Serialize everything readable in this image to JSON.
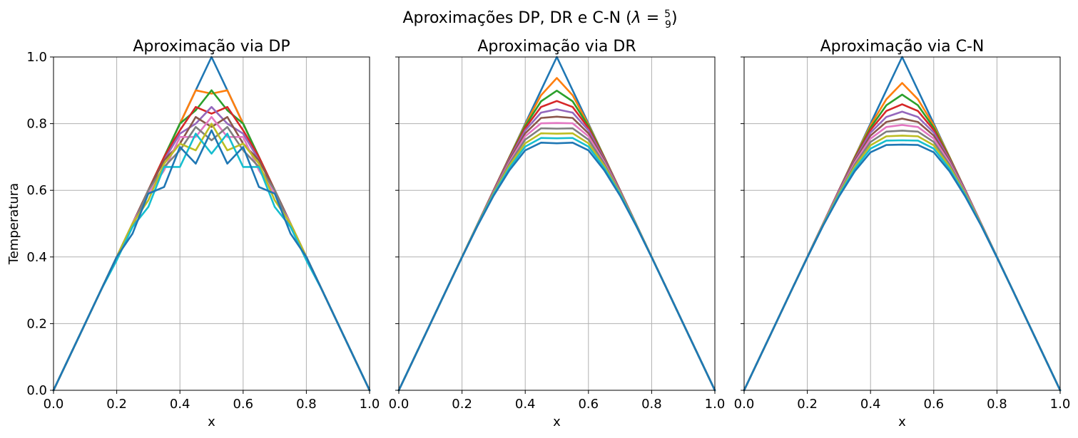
{
  "figure": {
    "suptitle_prefix": "Aproximações DP, DR e C-N (",
    "suptitle_lambda": "λ",
    "suptitle_eq": " = ",
    "suptitle_frac_num": "5",
    "suptitle_frac_den": "9",
    "suptitle_suffix": ")"
  },
  "palette": [
    "#1f77b4",
    "#ff7f0e",
    "#2ca02c",
    "#d62728",
    "#9467bd",
    "#8c564b",
    "#e377c2",
    "#7f7f7f",
    "#bcbd22",
    "#17becf",
    "#1f77b4"
  ],
  "chart_data": [
    {
      "type": "line",
      "title": "Aproximação via DP",
      "xlabel": "x",
      "ylabel": "Temperatura",
      "xlim": [
        0,
        1
      ],
      "ylim": [
        0,
        1
      ],
      "xticks": [
        "0.0",
        "0.2",
        "0.4",
        "0.6",
        "0.8",
        "1.0"
      ],
      "yticks": [
        "0.0",
        "0.2",
        "0.4",
        "0.6",
        "0.8",
        "1.0"
      ],
      "grid": true,
      "x": [
        0,
        0.05,
        0.1,
        0.15,
        0.2,
        0.25,
        0.3,
        0.35,
        0.4,
        0.45,
        0.5,
        0.55,
        0.6,
        0.65,
        0.7,
        0.75,
        0.8,
        0.85,
        0.9,
        0.95,
        1.0
      ],
      "series": [
        {
          "values": [
            0,
            0.1,
            0.2,
            0.3,
            0.4,
            0.5,
            0.6,
            0.7,
            0.8,
            0.9,
            1.0,
            0.9,
            0.8,
            0.7,
            0.6,
            0.5,
            0.4,
            0.3,
            0.2,
            0.1,
            0
          ]
        },
        {
          "values": [
            0,
            0.1,
            0.2,
            0.3,
            0.4,
            0.5,
            0.6,
            0.7,
            0.8,
            0.9,
            0.89,
            0.9,
            0.8,
            0.7,
            0.6,
            0.5,
            0.4,
            0.3,
            0.2,
            0.1,
            0
          ]
        },
        {
          "values": [
            0,
            0.1,
            0.2,
            0.3,
            0.4,
            0.5,
            0.6,
            0.7,
            0.8,
            0.84,
            0.9,
            0.84,
            0.8,
            0.7,
            0.6,
            0.5,
            0.4,
            0.3,
            0.2,
            0.1,
            0
          ]
        },
        {
          "values": [
            0,
            0.1,
            0.2,
            0.3,
            0.4,
            0.5,
            0.6,
            0.7,
            0.78,
            0.85,
            0.83,
            0.85,
            0.78,
            0.7,
            0.6,
            0.5,
            0.4,
            0.3,
            0.2,
            0.1,
            0
          ]
        },
        {
          "values": [
            0,
            0.1,
            0.2,
            0.3,
            0.4,
            0.5,
            0.6,
            0.69,
            0.77,
            0.8,
            0.85,
            0.8,
            0.77,
            0.69,
            0.6,
            0.5,
            0.4,
            0.3,
            0.2,
            0.1,
            0
          ]
        },
        {
          "values": [
            0,
            0.1,
            0.2,
            0.3,
            0.4,
            0.5,
            0.6,
            0.69,
            0.74,
            0.82,
            0.79,
            0.82,
            0.74,
            0.69,
            0.6,
            0.5,
            0.4,
            0.3,
            0.2,
            0.1,
            0
          ]
        },
        {
          "values": [
            0,
            0.1,
            0.2,
            0.3,
            0.4,
            0.5,
            0.59,
            0.66,
            0.76,
            0.76,
            0.82,
            0.76,
            0.76,
            0.66,
            0.59,
            0.5,
            0.4,
            0.3,
            0.2,
            0.1,
            0
          ]
        },
        {
          "values": [
            0,
            0.1,
            0.2,
            0.3,
            0.4,
            0.49,
            0.6,
            0.67,
            0.72,
            0.79,
            0.75,
            0.79,
            0.72,
            0.67,
            0.6,
            0.49,
            0.4,
            0.3,
            0.2,
            0.1,
            0
          ]
        },
        {
          "values": [
            0,
            0.1,
            0.2,
            0.3,
            0.4,
            0.5,
            0.57,
            0.68,
            0.74,
            0.72,
            0.8,
            0.72,
            0.74,
            0.68,
            0.57,
            0.5,
            0.4,
            0.3,
            0.2,
            0.1,
            0
          ]
        },
        {
          "values": [
            0,
            0.1,
            0.2,
            0.3,
            0.39,
            0.49,
            0.55,
            0.67,
            0.67,
            0.77,
            0.71,
            0.77,
            0.67,
            0.67,
            0.55,
            0.49,
            0.39,
            0.3,
            0.2,
            0.1,
            0
          ]
        },
        {
          "values": [
            0,
            0.1,
            0.2,
            0.3,
            0.4,
            0.47,
            0.59,
            0.61,
            0.73,
            0.68,
            0.78,
            0.68,
            0.73,
            0.61,
            0.59,
            0.47,
            0.4,
            0.3,
            0.2,
            0.1,
            0
          ]
        }
      ]
    },
    {
      "type": "line",
      "title": "Aproximação via DR",
      "xlabel": "x",
      "ylabel": "",
      "xlim": [
        0,
        1
      ],
      "ylim": [
        0,
        1
      ],
      "xticks": [
        "0.0",
        "0.2",
        "0.4",
        "0.6",
        "0.8",
        "1.0"
      ],
      "yticks": [],
      "grid": true,
      "x": [
        0,
        0.05,
        0.1,
        0.15,
        0.2,
        0.25,
        0.3,
        0.35,
        0.4,
        0.45,
        0.5,
        0.55,
        0.6,
        0.65,
        0.7,
        0.75,
        0.8,
        0.85,
        0.9,
        0.95,
        1.0
      ],
      "series": [
        {
          "values": [
            0,
            0.1,
            0.2,
            0.3,
            0.4,
            0.5,
            0.6,
            0.7,
            0.8,
            0.9,
            1.0,
            0.9,
            0.8,
            0.7,
            0.6,
            0.5,
            0.4,
            0.3,
            0.2,
            0.1,
            0
          ]
        },
        {
          "values": [
            0,
            0.1,
            0.2,
            0.3,
            0.4,
            0.5,
            0.6,
            0.7,
            0.797,
            0.885,
            0.937,
            0.885,
            0.797,
            0.7,
            0.6,
            0.5,
            0.4,
            0.3,
            0.2,
            0.1,
            0
          ]
        },
        {
          "values": [
            0,
            0.1,
            0.2,
            0.3,
            0.4,
            0.5,
            0.6,
            0.699,
            0.793,
            0.867,
            0.899,
            0.867,
            0.793,
            0.699,
            0.6,
            0.5,
            0.4,
            0.3,
            0.2,
            0.1,
            0
          ]
        },
        {
          "values": [
            0,
            0.1,
            0.2,
            0.3,
            0.4,
            0.5,
            0.6,
            0.697,
            0.787,
            0.85,
            0.868,
            0.85,
            0.787,
            0.697,
            0.6,
            0.5,
            0.4,
            0.3,
            0.2,
            0.1,
            0
          ]
        },
        {
          "values": [
            0,
            0.1,
            0.2,
            0.3,
            0.4,
            0.5,
            0.599,
            0.694,
            0.78,
            0.833,
            0.843,
            0.833,
            0.78,
            0.694,
            0.599,
            0.5,
            0.4,
            0.3,
            0.2,
            0.1,
            0
          ]
        },
        {
          "values": [
            0,
            0.1,
            0.2,
            0.3,
            0.4,
            0.5,
            0.598,
            0.69,
            0.771,
            0.817,
            0.821,
            0.817,
            0.771,
            0.69,
            0.598,
            0.5,
            0.4,
            0.3,
            0.2,
            0.1,
            0
          ]
        },
        {
          "values": [
            0,
            0.1,
            0.2,
            0.3,
            0.4,
            0.499,
            0.596,
            0.685,
            0.762,
            0.801,
            0.802,
            0.801,
            0.762,
            0.685,
            0.596,
            0.499,
            0.4,
            0.3,
            0.2,
            0.1,
            0
          ]
        },
        {
          "values": [
            0,
            0.1,
            0.2,
            0.3,
            0.4,
            0.499,
            0.594,
            0.68,
            0.752,
            0.786,
            0.785,
            0.786,
            0.752,
            0.68,
            0.594,
            0.499,
            0.4,
            0.3,
            0.2,
            0.1,
            0
          ]
        },
        {
          "values": [
            0,
            0.1,
            0.2,
            0.3,
            0.4,
            0.498,
            0.591,
            0.674,
            0.741,
            0.771,
            0.77,
            0.771,
            0.741,
            0.674,
            0.591,
            0.498,
            0.4,
            0.3,
            0.2,
            0.1,
            0
          ]
        },
        {
          "values": [
            0,
            0.1,
            0.2,
            0.3,
            0.399,
            0.497,
            0.588,
            0.667,
            0.731,
            0.757,
            0.756,
            0.757,
            0.731,
            0.667,
            0.588,
            0.497,
            0.399,
            0.3,
            0.2,
            0.1,
            0
          ]
        },
        {
          "values": [
            0,
            0.1,
            0.2,
            0.3,
            0.399,
            0.495,
            0.584,
            0.66,
            0.72,
            0.743,
            0.741,
            0.743,
            0.72,
            0.66,
            0.584,
            0.495,
            0.399,
            0.3,
            0.2,
            0.1,
            0
          ]
        }
      ]
    },
    {
      "type": "line",
      "title": "Aproximação via C-N",
      "xlabel": "x",
      "ylabel": "",
      "xlim": [
        0,
        1
      ],
      "ylim": [
        0,
        1
      ],
      "xticks": [
        "0.0",
        "0.2",
        "0.4",
        "0.6",
        "0.8",
        "1.0"
      ],
      "yticks": [],
      "grid": true,
      "x": [
        0,
        0.05,
        0.1,
        0.15,
        0.2,
        0.25,
        0.3,
        0.35,
        0.4,
        0.45,
        0.5,
        0.55,
        0.6,
        0.65,
        0.7,
        0.75,
        0.8,
        0.85,
        0.9,
        0.95,
        1.0
      ],
      "series": [
        {
          "values": [
            0,
            0.1,
            0.2,
            0.3,
            0.4,
            0.5,
            0.6,
            0.7,
            0.8,
            0.9,
            1.0,
            0.9,
            0.8,
            0.7,
            0.6,
            0.5,
            0.4,
            0.3,
            0.2,
            0.1,
            0
          ]
        },
        {
          "values": [
            0,
            0.1,
            0.2,
            0.3,
            0.4,
            0.5,
            0.6,
            0.7,
            0.795,
            0.873,
            0.922,
            0.873,
            0.795,
            0.7,
            0.6,
            0.5,
            0.4,
            0.3,
            0.2,
            0.1,
            0
          ]
        },
        {
          "values": [
            0,
            0.1,
            0.2,
            0.3,
            0.4,
            0.5,
            0.6,
            0.698,
            0.788,
            0.855,
            0.887,
            0.855,
            0.788,
            0.698,
            0.6,
            0.5,
            0.4,
            0.3,
            0.2,
            0.1,
            0
          ]
        },
        {
          "values": [
            0,
            0.1,
            0.2,
            0.3,
            0.4,
            0.5,
            0.6,
            0.695,
            0.781,
            0.838,
            0.858,
            0.838,
            0.781,
            0.695,
            0.6,
            0.5,
            0.4,
            0.3,
            0.2,
            0.1,
            0
          ]
        },
        {
          "values": [
            0,
            0.1,
            0.2,
            0.3,
            0.4,
            0.5,
            0.599,
            0.692,
            0.773,
            0.82,
            0.836,
            0.82,
            0.773,
            0.692,
            0.599,
            0.5,
            0.4,
            0.3,
            0.2,
            0.1,
            0
          ]
        },
        {
          "values": [
            0,
            0.1,
            0.2,
            0.3,
            0.4,
            0.499,
            0.597,
            0.688,
            0.764,
            0.805,
            0.815,
            0.805,
            0.764,
            0.688,
            0.597,
            0.499,
            0.4,
            0.3,
            0.2,
            0.1,
            0
          ]
        },
        {
          "values": [
            0,
            0.1,
            0.2,
            0.3,
            0.4,
            0.499,
            0.595,
            0.683,
            0.755,
            0.79,
            0.796,
            0.79,
            0.755,
            0.683,
            0.595,
            0.499,
            0.4,
            0.3,
            0.2,
            0.1,
            0
          ]
        },
        {
          "values": [
            0,
            0.1,
            0.2,
            0.3,
            0.4,
            0.498,
            0.592,
            0.677,
            0.745,
            0.776,
            0.779,
            0.776,
            0.745,
            0.677,
            0.592,
            0.498,
            0.4,
            0.3,
            0.2,
            0.1,
            0
          ]
        },
        {
          "values": [
            0,
            0.1,
            0.2,
            0.3,
            0.399,
            0.497,
            0.589,
            0.671,
            0.735,
            0.762,
            0.764,
            0.762,
            0.735,
            0.671,
            0.589,
            0.497,
            0.399,
            0.3,
            0.2,
            0.1,
            0
          ]
        },
        {
          "values": [
            0,
            0.1,
            0.2,
            0.3,
            0.399,
            0.495,
            0.585,
            0.664,
            0.725,
            0.749,
            0.75,
            0.749,
            0.725,
            0.664,
            0.585,
            0.495,
            0.399,
            0.3,
            0.2,
            0.1,
            0
          ]
        },
        {
          "values": [
            0,
            0.1,
            0.2,
            0.3,
            0.398,
            0.494,
            0.581,
            0.657,
            0.714,
            0.736,
            0.737,
            0.736,
            0.714,
            0.657,
            0.581,
            0.494,
            0.398,
            0.3,
            0.2,
            0.1,
            0
          ]
        }
      ]
    }
  ]
}
